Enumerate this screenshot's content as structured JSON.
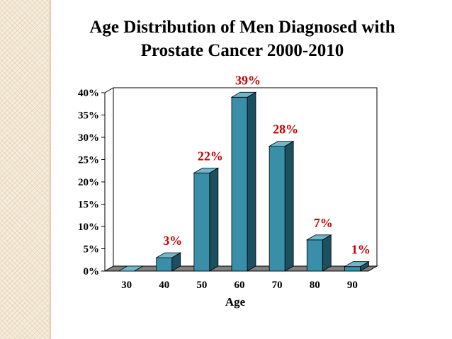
{
  "colors": {
    "bar_front": "#3a8fa8",
    "bar_side": "#1c4f60",
    "bar_top": "#6fb8cc",
    "data_label": "#c00000",
    "floor": "#808080"
  },
  "chart_data": {
    "type": "bar",
    "title": "Age Distribution of Men Diagnosed with Prostate Cancer 2000-2010",
    "title_lines": [
      "Age Distribution of Men Diagnosed with",
      "Prostate Cancer 2000-2010"
    ],
    "xlabel": "Age",
    "ylabel": "",
    "categories": [
      "30",
      "40",
      "50",
      "60",
      "70",
      "80",
      "90"
    ],
    "values": [
      0,
      3,
      22,
      39,
      28,
      7,
      1
    ],
    "data_labels": [
      "",
      "3%",
      "22%",
      "39%",
      "28%",
      "7%",
      "1%"
    ],
    "y_ticks": [
      "0%",
      "5%",
      "10%",
      "15%",
      "20%",
      "25%",
      "30%",
      "35%",
      "40%"
    ],
    "ylim": [
      0,
      40
    ],
    "grid": false,
    "legend": "none",
    "style": "3d-column"
  }
}
